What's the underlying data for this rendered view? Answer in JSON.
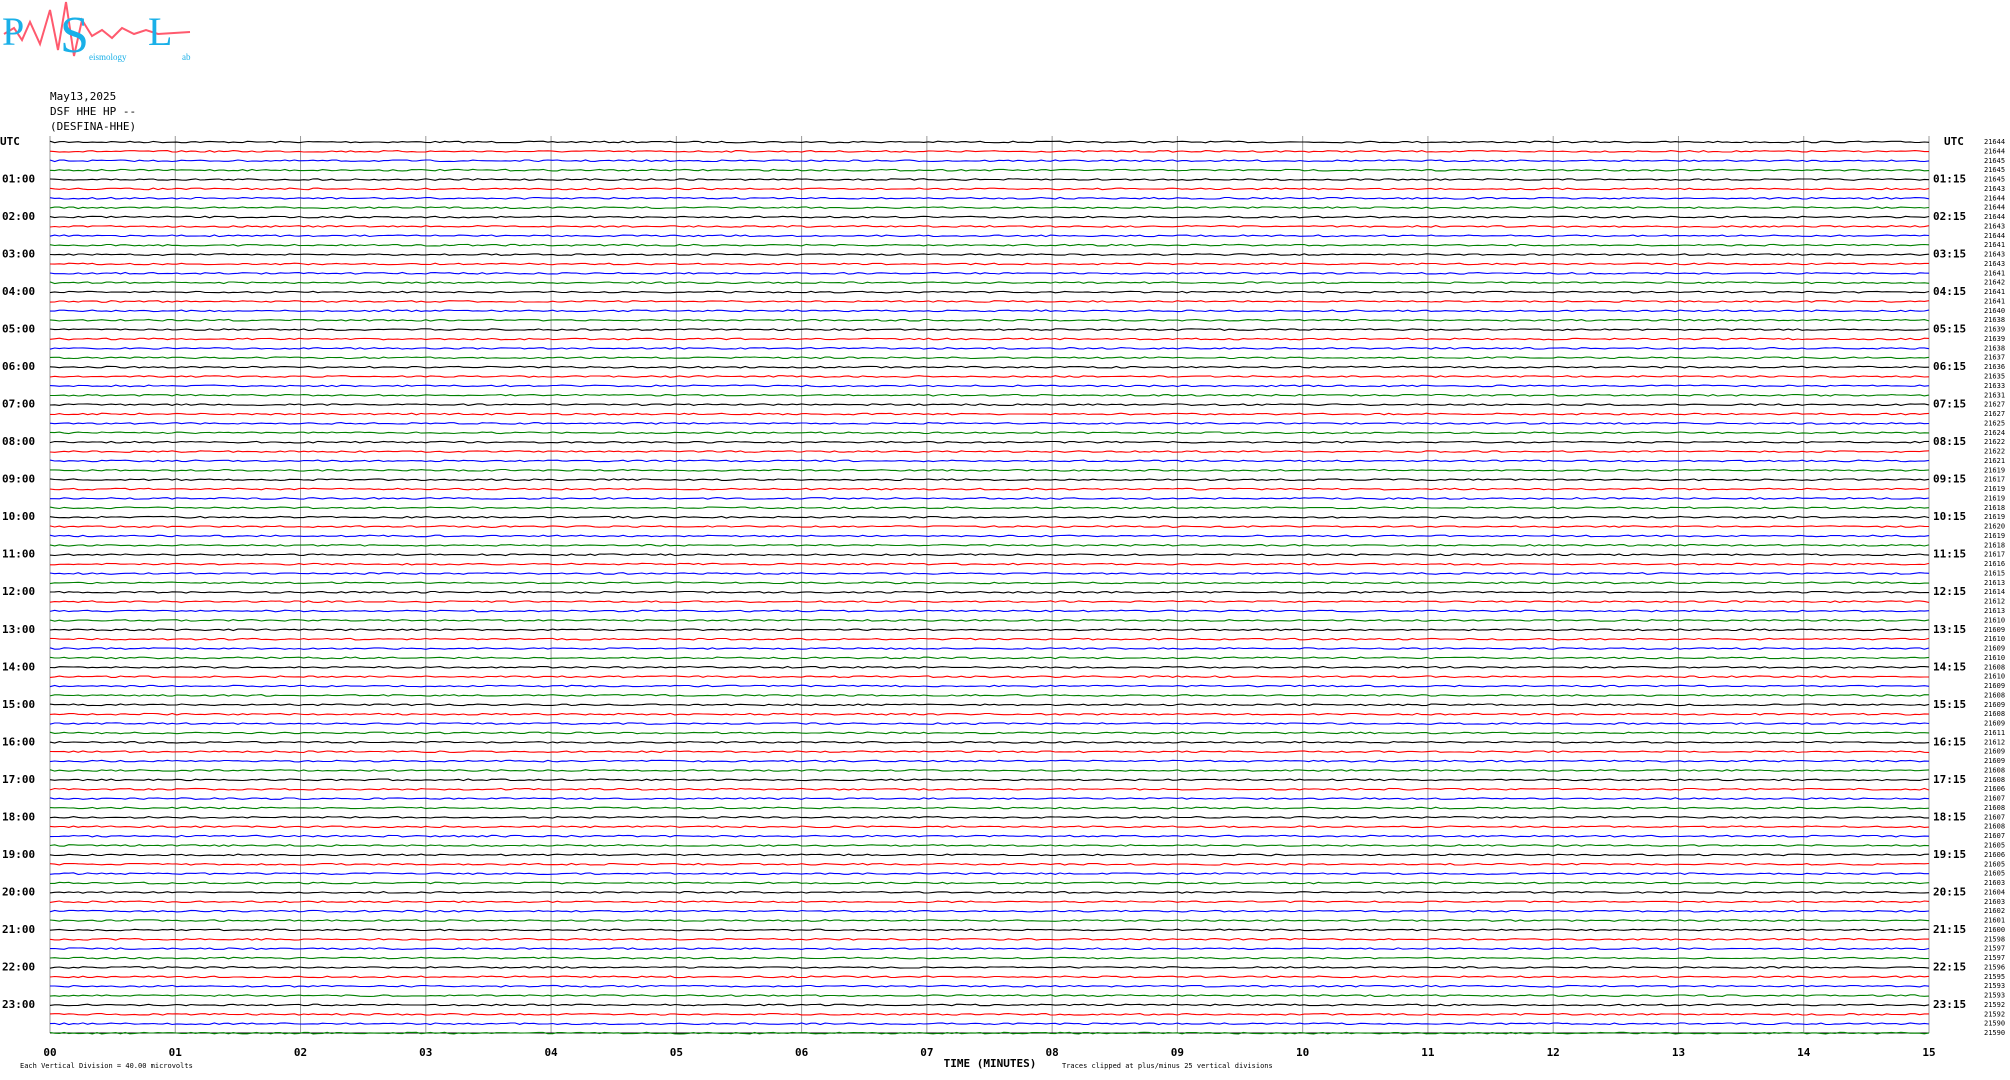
{
  "chart_data": {
    "type": "helicorder",
    "logo": {
      "p": "P",
      "s": "S",
      "l": "L",
      "seismology": "eismology",
      "lab": "ab"
    },
    "date": "May13,2025",
    "channel": "DSF HHE HP --",
    "station": "(DESFINA-HHE)",
    "left_axis_title": "UTC",
    "right_axis_title": "UTC",
    "hour_labels": [
      "01:00",
      "02:00",
      "03:00",
      "04:00",
      "05:00",
      "06:00",
      "07:00",
      "08:00",
      "09:00",
      "10:00",
      "11:00",
      "12:00",
      "13:00",
      "14:00",
      "15:00",
      "16:00",
      "17:00",
      "18:00",
      "19:00",
      "20:00",
      "21:00",
      "22:00",
      "23:00"
    ],
    "right_hour_labels": [
      "01:15",
      "02:15",
      "03:15",
      "04:15",
      "05:15",
      "06:15",
      "07:15",
      "08:15",
      "09:15",
      "10:15",
      "11:15",
      "12:15",
      "13:15",
      "14:15",
      "15:15",
      "16:15",
      "17:15",
      "18:15",
      "19:15",
      "20:15",
      "21:15",
      "22:15",
      "23:15"
    ],
    "trace_values": [
      21644,
      21644,
      21645,
      21645,
      21645,
      21643,
      21644,
      21644,
      21644,
      21643,
      21644,
      21641,
      21643,
      21643,
      21641,
      21642,
      21641,
      21641,
      21640,
      21638,
      21639,
      21639,
      21638,
      21637,
      21636,
      21635,
      21633,
      21631,
      21627,
      21627,
      21625,
      21624,
      21622,
      21622,
      21621,
      21619,
      21617,
      21619,
      21619,
      21618,
      21619,
      21620,
      21619,
      21618,
      21617,
      21616,
      21615,
      21613,
      21614,
      21612,
      21613,
      21610,
      21609,
      21610,
      21609,
      21610,
      21608,
      21610,
      21609,
      21608,
      21609,
      21608,
      21609,
      21611,
      21612,
      21609,
      21609,
      21608,
      21608,
      21606,
      21607,
      21608,
      21607,
      21608,
      21607,
      21605,
      21606,
      21605,
      21605,
      21603,
      21604,
      21603,
      21602,
      21601,
      21600,
      21598,
      21597,
      21597,
      21596,
      21595,
      21593,
      21593,
      21592,
      21592,
      21590,
      21590
    ],
    "trace_colors": [
      "#000000",
      "#ff0000",
      "#0000ff",
      "#008000"
    ],
    "xlim": [
      0,
      15
    ],
    "xticks": [
      {
        "value": 0,
        "label": "00"
      },
      {
        "value": 1,
        "label": "01"
      },
      {
        "value": 2,
        "label": "02"
      },
      {
        "value": 3,
        "label": "03"
      },
      {
        "value": 4,
        "label": "04"
      },
      {
        "value": 5,
        "label": "05"
      },
      {
        "value": 6,
        "label": "06"
      },
      {
        "value": 7,
        "label": "07"
      },
      {
        "value": 8,
        "label": "08"
      },
      {
        "value": 9,
        "label": "09"
      },
      10,
      11,
      12,
      13,
      14,
      15
    ],
    "x_label": "TIME (MINUTES)",
    "scale_note": "Each Vertical Division =   40.00 microvolts",
    "clip_note": "Traces clipped at plus/minus 25 vertical divisions"
  }
}
